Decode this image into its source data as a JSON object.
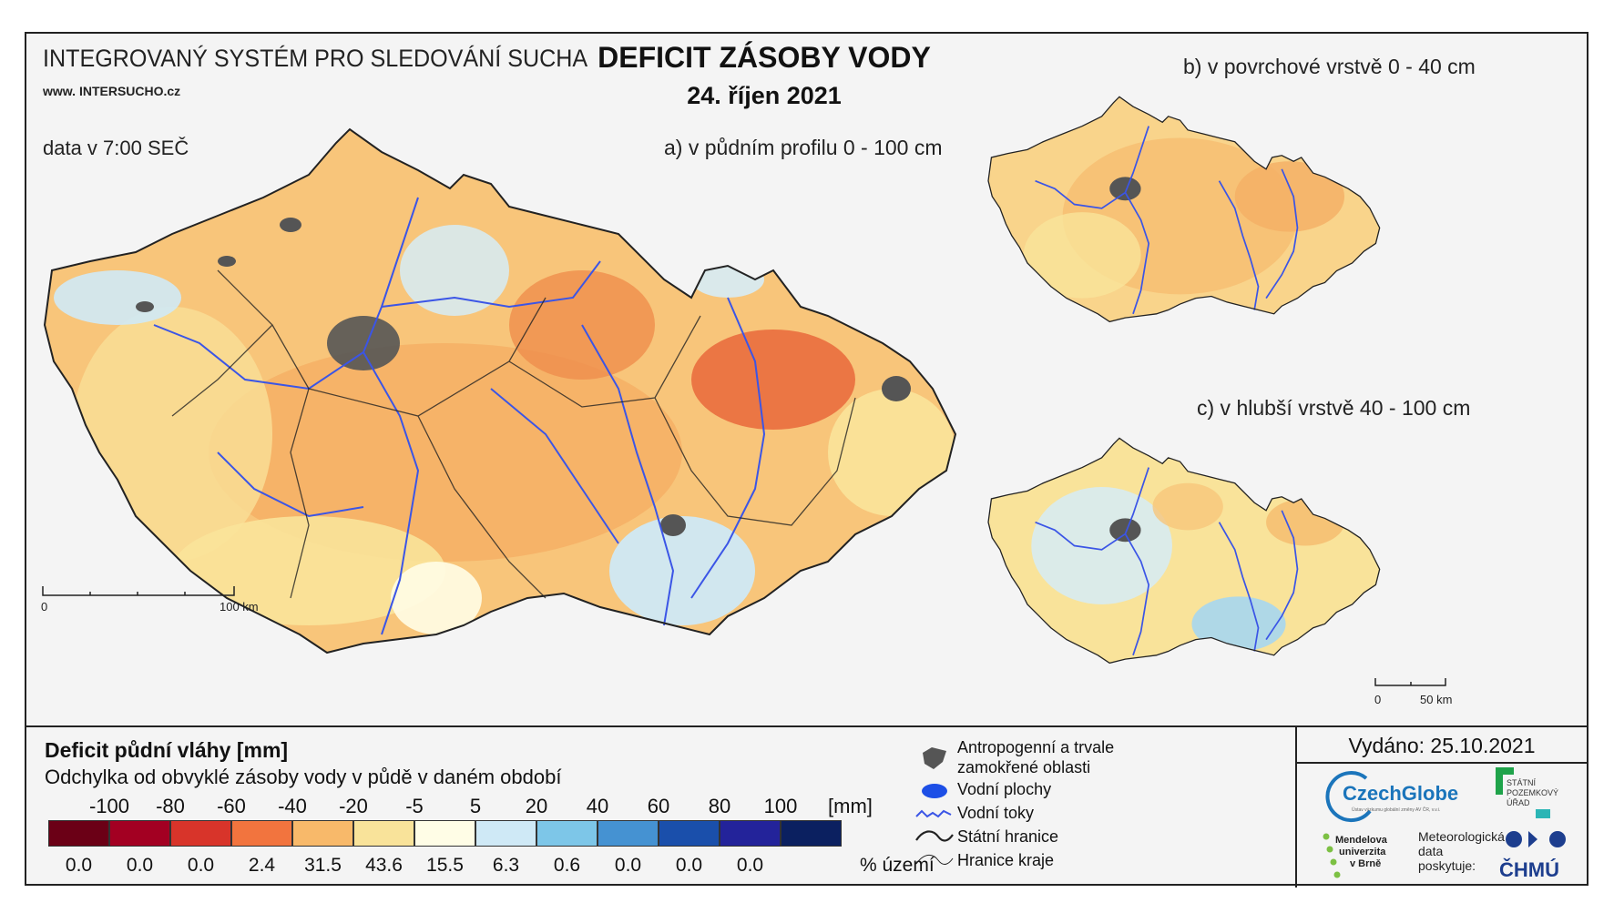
{
  "header": {
    "system_title": "INTEGROVANÝ SYSTÉM PRO SLEDOVÁNÍ SUCHA",
    "url_prefix": "www.",
    "url_main": "INTERSUCHO",
    "url_suffix": ".cz",
    "data_time": "data v 7:00 SEČ",
    "main_title": "DEFICIT ZÁSOBY VODY",
    "date": "24. říjen 2021"
  },
  "maps": {
    "a_label": "a) v půdním profilu 0 - 100 cm",
    "b_label": "b) v povrchové vrstvě 0 - 40 cm",
    "c_label": "c) v hlubší vrstvě 40 - 100 cm",
    "scale_main": {
      "start": "0",
      "end": "100 km"
    },
    "scale_small": {
      "start": "0",
      "end": "50 km"
    }
  },
  "legend": {
    "title": "Deficit půdní vláhy  [mm]",
    "subtitle": "Odchylka od obvyklé zásoby vody v půdě v daném období",
    "unit_mm": "[mm]",
    "unit_pct": "% území",
    "ticks": [
      "-100",
      "-80",
      "-60",
      "-40",
      "-20",
      "-5",
      "5",
      "20",
      "40",
      "60",
      "80",
      "100"
    ],
    "colors": [
      "#6b0016",
      "#a30022",
      "#d8342a",
      "#f2743e",
      "#f8b96a",
      "#f9e39a",
      "#fffde6",
      "#cfe9f6",
      "#7dc6e8",
      "#4592d2",
      "#1a4fab",
      "#23239a",
      "#0b2060"
    ],
    "percentages": [
      "0.0",
      "0.0",
      "0.0",
      "2.4",
      "31.5",
      "43.6",
      "15.5",
      "6.3",
      "0.6",
      "0.0",
      "0.0",
      "0.0"
    ],
    "items": {
      "anthro": "Antropogenní a trvale",
      "anthro2": "zamokřené oblasti",
      "water_bodies": "Vodní plochy",
      "streams": "Vodní toky",
      "state_border": "Státní hranice",
      "region_border": "Hranice kraje"
    }
  },
  "footer": {
    "issued": "Vydáno: 25.10.2021",
    "czechglobe": "CzechGlobe",
    "czechglobe_sub": "Ústav výzkumu globální změny AV ČR, v.v.i.",
    "spu": [
      "STÁTNÍ",
      "POZEMKOVÝ",
      "ÚŘAD"
    ],
    "mendel": [
      "Mendelova",
      "univerzita",
      "v Brně"
    ],
    "meteo": [
      "Meteorologická",
      "data",
      "poskytuje:"
    ],
    "chmu": "ČHMÚ"
  }
}
